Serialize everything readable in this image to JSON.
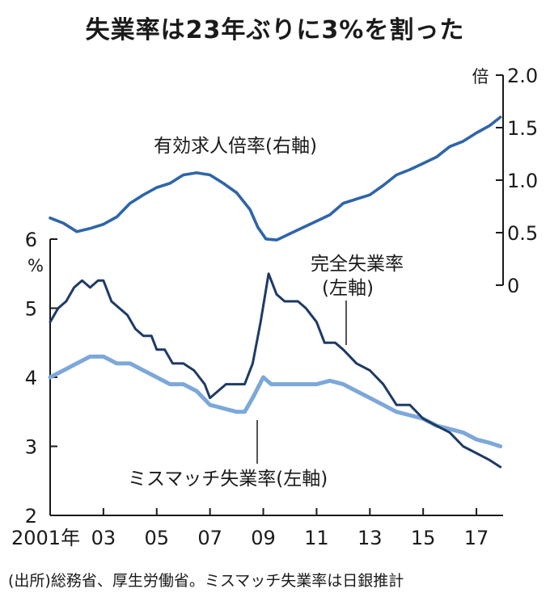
{
  "title": "失業率は23年ぶりに3%を割った",
  "source": "(出所)総務省、厚生労働省。ミスマッチ失業率は日銀推計",
  "chart_data": {
    "type": "line",
    "x_ticks": [
      {
        "label": "2001年",
        "year": 2001
      },
      {
        "label": "03",
        "year": 2003
      },
      {
        "label": "05",
        "year": 2005
      },
      {
        "label": "07",
        "year": 2007
      },
      {
        "label": "09",
        "year": 2009
      },
      {
        "label": "11",
        "year": 2011
      },
      {
        "label": "13",
        "year": 2013
      },
      {
        "label": "15",
        "year": 2015
      },
      {
        "label": "17",
        "year": 2017
      }
    ],
    "xlim": [
      2001,
      2018
    ],
    "left_axis": {
      "unit": "%",
      "ylim": [
        2,
        6
      ],
      "ticks": [
        "2",
        "3",
        "4",
        "5",
        "6"
      ]
    },
    "right_axis": {
      "unit": "倍",
      "ylim": [
        0,
        2.0
      ],
      "ticks": [
        "0",
        "0.5",
        "1.0",
        "1.5",
        "2.0"
      ]
    },
    "colors": {
      "jobs_ratio": "#2e65a8",
      "unemployment": "#1d3a66",
      "mismatch": "#7ca8d9"
    },
    "series": [
      {
        "name": "有効求人倍率(右軸)",
        "label_line1": "有効求人倍率(右軸)",
        "axis": "right",
        "x": [
          2001.0,
          2001.5,
          2002.0,
          2002.5,
          2003.0,
          2003.5,
          2004.0,
          2004.5,
          2005.0,
          2005.5,
          2006.0,
          2006.5,
          2007.0,
          2007.5,
          2008.0,
          2008.5,
          2008.8,
          2009.1,
          2009.5,
          2010.0,
          2010.5,
          2011.0,
          2011.5,
          2012.0,
          2012.5,
          2013.0,
          2013.5,
          2014.0,
          2014.5,
          2015.0,
          2015.5,
          2016.0,
          2016.5,
          2017.0,
          2017.5,
          2017.9
        ],
        "values": [
          0.64,
          0.59,
          0.51,
          0.54,
          0.58,
          0.65,
          0.78,
          0.86,
          0.93,
          0.97,
          1.05,
          1.07,
          1.05,
          0.97,
          0.88,
          0.72,
          0.55,
          0.44,
          0.43,
          0.49,
          0.55,
          0.61,
          0.67,
          0.78,
          0.82,
          0.86,
          0.95,
          1.05,
          1.1,
          1.16,
          1.22,
          1.32,
          1.37,
          1.45,
          1.52,
          1.6
        ]
      },
      {
        "name": "完全失業率(左軸)",
        "label_line1": "完全失業率",
        "label_line2": "(左軸)",
        "axis": "left",
        "x": [
          2001.0,
          2001.3,
          2001.6,
          2001.9,
          2002.2,
          2002.5,
          2002.8,
          2003.0,
          2003.3,
          2003.6,
          2003.9,
          2004.2,
          2004.5,
          2004.8,
          2005.0,
          2005.3,
          2005.6,
          2006.0,
          2006.4,
          2006.8,
          2007.0,
          2007.3,
          2007.6,
          2008.0,
          2008.3,
          2008.6,
          2008.9,
          2009.2,
          2009.5,
          2009.8,
          2010.0,
          2010.3,
          2010.6,
          2011.0,
          2011.3,
          2011.7,
          2012.0,
          2012.5,
          2013.0,
          2013.5,
          2014.0,
          2014.5,
          2015.0,
          2015.5,
          2016.0,
          2016.5,
          2017.0,
          2017.5,
          2017.9
        ],
        "values": [
          4.8,
          5.0,
          5.1,
          5.3,
          5.4,
          5.3,
          5.4,
          5.4,
          5.1,
          5.0,
          4.9,
          4.7,
          4.6,
          4.6,
          4.4,
          4.4,
          4.2,
          4.2,
          4.1,
          3.9,
          3.7,
          3.8,
          3.9,
          3.9,
          3.9,
          4.2,
          4.8,
          5.5,
          5.2,
          5.1,
          5.1,
          5.1,
          5.0,
          4.8,
          4.5,
          4.5,
          4.4,
          4.2,
          4.1,
          3.9,
          3.6,
          3.6,
          3.4,
          3.3,
          3.2,
          3.0,
          2.9,
          2.8,
          2.7
        ]
      },
      {
        "name": "ミスマッチ失業率(左軸)",
        "label_line1": "ミスマッチ失業率(左軸)",
        "axis": "left",
        "x": [
          2001.0,
          2001.5,
          2002.0,
          2002.5,
          2003.0,
          2003.5,
          2004.0,
          2004.5,
          2005.0,
          2005.5,
          2006.0,
          2006.5,
          2007.0,
          2007.5,
          2008.0,
          2008.3,
          2008.6,
          2009.0,
          2009.3,
          2009.6,
          2010.0,
          2010.5,
          2011.0,
          2011.5,
          2012.0,
          2012.5,
          2013.0,
          2013.5,
          2014.0,
          2014.5,
          2015.0,
          2015.5,
          2016.0,
          2016.5,
          2017.0,
          2017.5,
          2017.9
        ],
        "values": [
          4.0,
          4.1,
          4.2,
          4.3,
          4.3,
          4.2,
          4.2,
          4.1,
          4.0,
          3.9,
          3.9,
          3.8,
          3.6,
          3.55,
          3.5,
          3.5,
          3.7,
          4.0,
          3.9,
          3.9,
          3.9,
          3.9,
          3.9,
          3.95,
          3.9,
          3.8,
          3.7,
          3.6,
          3.5,
          3.45,
          3.4,
          3.3,
          3.25,
          3.2,
          3.1,
          3.05,
          3.0
        ]
      }
    ]
  }
}
